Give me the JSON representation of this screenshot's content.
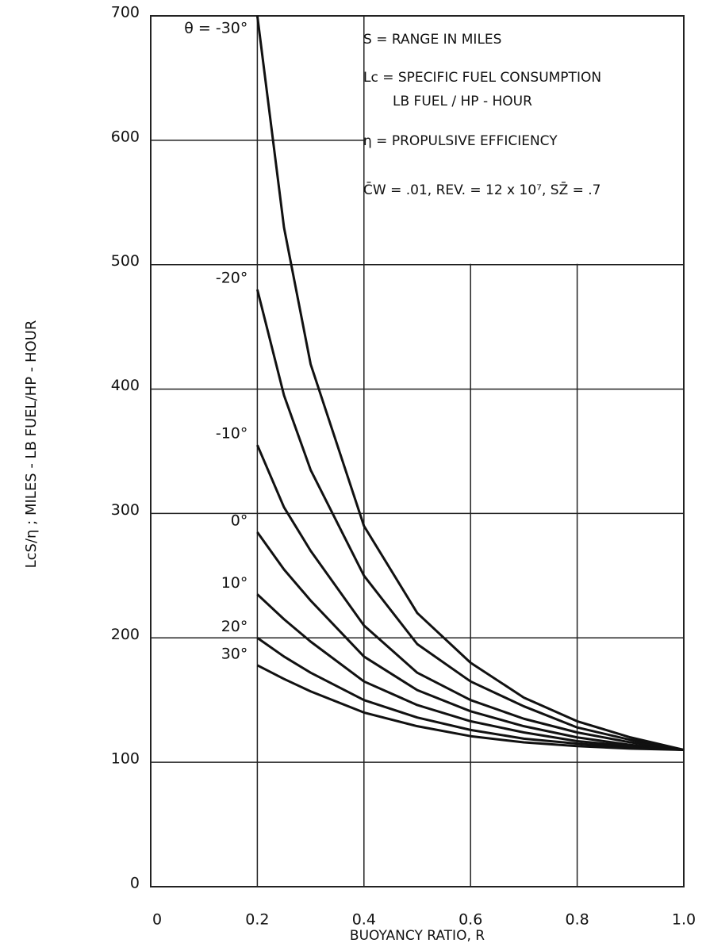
{
  "chart_data": {
    "type": "line",
    "xlabel": "BUOYANCY RATIO, R",
    "ylabel": "LcS/η ; MILES - LB FUEL/HP - HOUR",
    "annotations": [
      "S = RANGE IN MILES",
      "Lc = SPECIFIC FUEL CONSUMPTION",
      "LB FUEL / HP - HOUR",
      "η = PROPULSIVE EFFICIENCY",
      "C̄W = .01, REV. = 12 x 10⁷, SZ̄ = .7"
    ],
    "x": [
      0.2,
      0.25,
      0.3,
      0.4,
      0.5,
      0.6,
      0.7,
      0.8,
      0.9,
      1.0
    ],
    "series": [
      {
        "name": "θ = -30°",
        "color": "#111111",
        "values": [
          700,
          530,
          420,
          290,
          220,
          180,
          152,
          133,
          120,
          110
        ]
      },
      {
        "name": "-20°",
        "color": "#111111",
        "values": [
          480,
          395,
          335,
          250,
          195,
          165,
          145,
          128,
          118,
          110
        ]
      },
      {
        "name": "-10°",
        "color": "#111111",
        "values": [
          355,
          305,
          270,
          210,
          172,
          150,
          135,
          124,
          116,
          110
        ]
      },
      {
        "name": "0°",
        "color": "#111111",
        "values": [
          285,
          255,
          230,
          185,
          158,
          141,
          129,
          120,
          114,
          110
        ]
      },
      {
        "name": "10°",
        "color": "#111111",
        "values": [
          235,
          215,
          197,
          165,
          146,
          133,
          124,
          117,
          113,
          110
        ]
      },
      {
        "name": "20°",
        "color": "#111111",
        "values": [
          200,
          185,
          172,
          150,
          136,
          126,
          119,
          115,
          112,
          110
        ]
      },
      {
        "name": "30°",
        "color": "#111111",
        "values": [
          178,
          167,
          157,
          140,
          129,
          121,
          116,
          113,
          111,
          110
        ]
      }
    ],
    "xlim": [
      0,
      1
    ],
    "ylim": [
      0,
      700
    ],
    "xticks": [
      0,
      0.2,
      0.4,
      0.6,
      0.8,
      {
        "value": 1,
        "label": "1.0"
      }
    ],
    "yticks": [
      0,
      100,
      200,
      300,
      400,
      500,
      600,
      700
    ],
    "grid": true
  }
}
